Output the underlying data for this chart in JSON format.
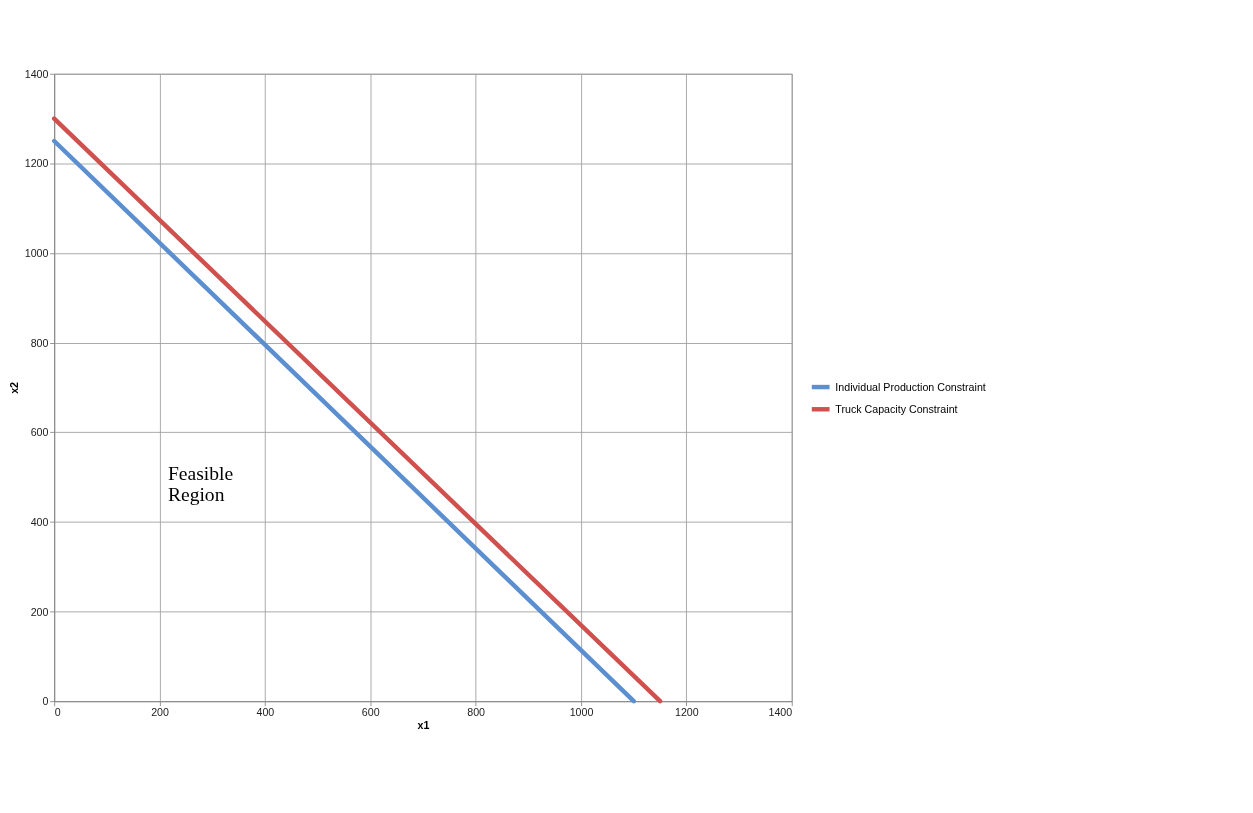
{
  "chart_data": {
    "type": "line",
    "xlabel": "x1",
    "ylabel": "x2",
    "xlim": [
      0,
      1400
    ],
    "ylim": [
      0,
      1400
    ],
    "xticks": [
      0,
      200,
      400,
      600,
      800,
      1000,
      1200,
      1400
    ],
    "yticks": [
      0,
      200,
      400,
      600,
      800,
      1000,
      1200,
      1400
    ],
    "grid": true,
    "legend": "right",
    "marker": "none",
    "line_style": "solid",
    "annotations": [
      "Feasible Region"
    ],
    "series": [
      {
        "name": "Individual Production Constraint",
        "color": "#5b8fd0",
        "x": [
          0,
          1100
        ],
        "values": [
          1250,
          0
        ]
      },
      {
        "name": "Truck Capacity Constraint",
        "color": "#d0504d",
        "x": [
          0,
          1150
        ],
        "values": [
          1300,
          0
        ]
      }
    ]
  }
}
